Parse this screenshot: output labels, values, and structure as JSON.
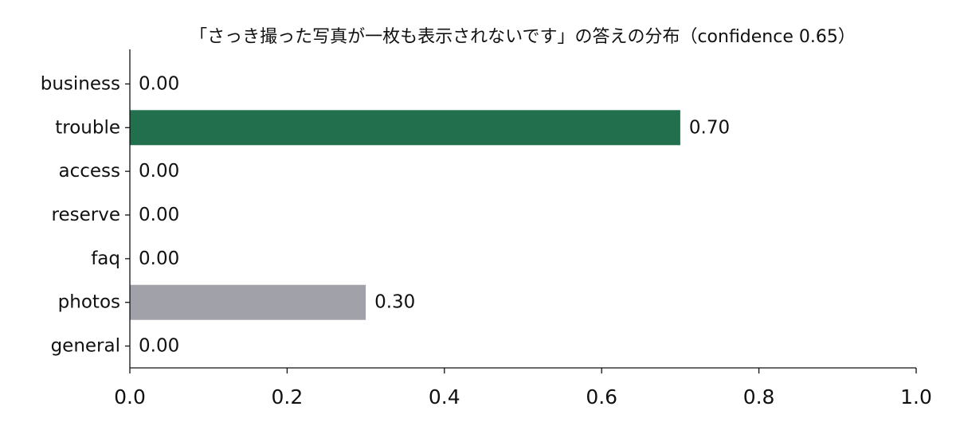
{
  "chart_data": {
    "type": "bar",
    "orientation": "horizontal",
    "title": "「さっき撮った写真が一枚も表示されないです」の答えの分布（confidence 0.65）",
    "categories": [
      "business",
      "trouble",
      "access",
      "reserve",
      "faq",
      "photos",
      "general"
    ],
    "values": [
      0.0,
      0.7,
      0.0,
      0.0,
      0.0,
      0.3,
      0.0
    ],
    "value_labels": [
      "0.00",
      "0.70",
      "0.00",
      "0.00",
      "0.00",
      "0.30",
      "0.00"
    ],
    "bar_colors": [
      "#a1a1a9",
      "#226f4d",
      "#a1a1a9",
      "#a1a1a9",
      "#a1a1a9",
      "#a1a1a9",
      "#a1a1a9"
    ],
    "xlim": [
      0.0,
      1.0
    ],
    "x_ticks": [
      0.0,
      0.2,
      0.4,
      0.6,
      0.8,
      1.0
    ],
    "x_tick_labels": [
      "0.0",
      "0.2",
      "0.4",
      "0.6",
      "0.8",
      "1.0"
    ],
    "xlabel": "",
    "ylabel": "",
    "grid": false,
    "legend": "none"
  }
}
